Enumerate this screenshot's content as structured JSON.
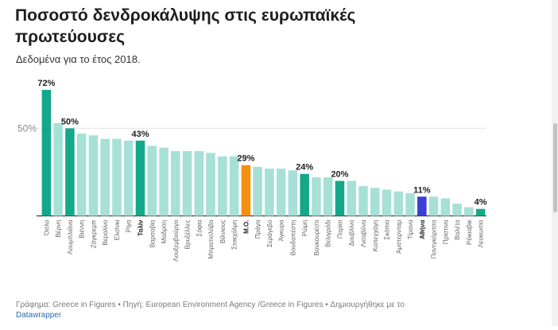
{
  "title": "Ποσοστό δενδροκάλυψης στις ευρωπαϊκές πρωτεύουσες",
  "subtitle": "Δεδομένα για το έτος 2018.",
  "footer": {
    "text": "Γράφημα: Greece in Figures • Πηγή: European Environment Agency /Greece in Figures • Δημιουργήθηκε με το",
    "link": "Datawrapper"
  },
  "colors": {
    "default": "#a6e0d7",
    "highlight": "#13a88a",
    "average": "#f5900f",
    "athens": "#3a3fd6",
    "gridline": "#e5e5e5",
    "baseline": "#333333"
  },
  "chart_data": {
    "type": "bar",
    "ylim": [
      0,
      72
    ],
    "yticks": [
      {
        "value": 50,
        "label": "50%"
      }
    ],
    "grid": true,
    "categories": [
      "Όσλο",
      "Βέρνη",
      "Λουμπλιάνα",
      "Βιέννη",
      "Ζάγκρεμπ",
      "Βερολίνο",
      "Ελσίνκι",
      "Ρίγα",
      "Ταλίν",
      "Βαρσοβία",
      "Μαδρίτη",
      "Λουξεμβούργο",
      "Βρυξέλλες",
      "Σόφια",
      "Μπρατισλάβα",
      "Βίλνιους",
      "Στοκχόλμη",
      "Μ.Ο.",
      "Πράγα",
      "Σεράγεβο",
      "Άγκυρα",
      "Βουδαπέστη",
      "Ρώμη",
      "Βουκουρέστι",
      "Βελιγράδι",
      "Παρίσι",
      "Δουβλίνο",
      "Λισαβόνα",
      "Κοπεγχάγη",
      "Σκόπια",
      "Άμστερνταμ",
      "Τίρανα",
      "Αθήνα",
      "Ποντγκόριτσα",
      "Πρίστινα",
      "Βαλέτα",
      "Ρέικιαβικ",
      "Λευκωσία"
    ],
    "values": [
      72,
      53,
      50,
      47,
      46,
      44,
      44,
      43,
      43,
      40,
      39,
      37,
      37,
      37,
      36,
      34,
      34,
      29,
      28,
      27,
      27,
      26,
      24,
      22,
      22,
      20,
      20,
      17,
      16,
      15,
      14,
      13,
      11,
      11,
      10,
      7,
      5,
      4
    ],
    "value_labels": {
      "0": "72%",
      "2": "50%",
      "8": "43%",
      "17": "29%",
      "22": "24%",
      "25": "20%",
      "32": "11%",
      "37": "4%"
    },
    "bold_categories": [
      8,
      17,
      32
    ],
    "highlight": [
      0,
      2,
      8,
      22,
      25,
      37
    ],
    "average_index": 17,
    "athens_index": 32
  }
}
